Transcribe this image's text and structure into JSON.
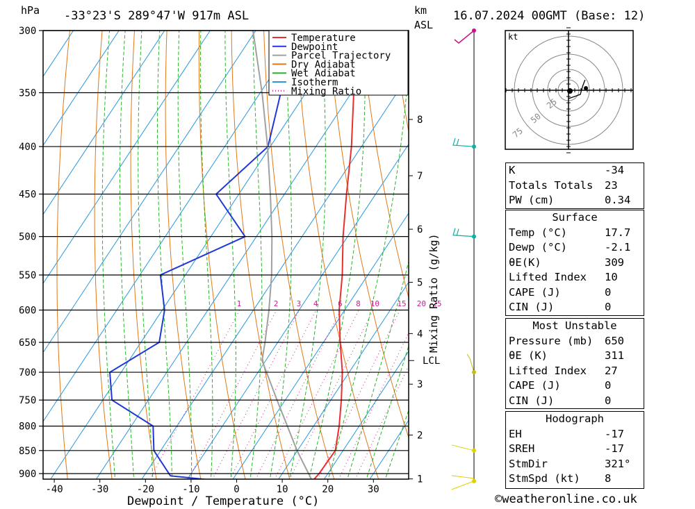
{
  "header": {
    "location": "-33°23'S 289°47'W 917m ASL",
    "datetime": "16.07.2024 00GMT (Base: 12)",
    "left_unit": "hPa",
    "right_unit_1": "km",
    "right_unit_2": "ASL"
  },
  "chart_data": {
    "type": "skew-t",
    "xlabel": "Dewpoint / Temperature (°C)",
    "ylabel_left": "hPa",
    "ylabel_right": "Mixing Ratio (g/kg)",
    "pressure_levels": [
      300,
      350,
      400,
      450,
      500,
      550,
      600,
      650,
      700,
      750,
      800,
      850,
      900
    ],
    "x_ticks": [
      -40,
      -30,
      -20,
      -10,
      0,
      10,
      20,
      30
    ],
    "km_ticks": [
      {
        "km": 8,
        "p": 374
      },
      {
        "km": 7,
        "p": 430
      },
      {
        "km": 6,
        "p": 491
      },
      {
        "km": 5,
        "p": 560
      },
      {
        "km": 4,
        "p": 636
      },
      {
        "km": 3,
        "p": 721
      },
      {
        "km": 2,
        "p": 818
      },
      {
        "km": 1,
        "p": 912
      }
    ],
    "lcl": {
      "label": "LCL",
      "p": 680
    },
    "mixing_ratio_labels": [
      "1",
      "2",
      "3",
      "4",
      "6",
      "8",
      "10",
      "15",
      "20",
      "25"
    ],
    "legend": [
      {
        "label": "Temperature",
        "color": "#e8302f",
        "style": "solid"
      },
      {
        "label": "Dewpoint",
        "color": "#2038d8",
        "style": "solid"
      },
      {
        "label": "Parcel Trajectory",
        "color": "#a0a0a0",
        "style": "solid"
      },
      {
        "label": "Dry Adiabat",
        "color": "#e07818",
        "style": "solid"
      },
      {
        "label": "Wet Adiabat",
        "color": "#28b428",
        "style": "solid"
      },
      {
        "label": "Isotherm",
        "color": "#2898e0",
        "style": "solid"
      },
      {
        "label": "Mixing Ratio",
        "color": "#c81e8c",
        "style": "dotted"
      }
    ],
    "series": [
      {
        "name": "Temperature",
        "points": [
          [
            917,
            17.7
          ],
          [
            900,
            18.1
          ],
          [
            850,
            18.3
          ],
          [
            800,
            15.6
          ],
          [
            750,
            12.3
          ],
          [
            700,
            8.5
          ],
          [
            650,
            3.7
          ],
          [
            600,
            -1.2
          ],
          [
            550,
            -5.6
          ],
          [
            500,
            -11.0
          ],
          [
            450,
            -16.4
          ],
          [
            400,
            -22.2
          ],
          [
            350,
            -29.5
          ],
          [
            300,
            -38.4
          ]
        ]
      },
      {
        "name": "Dewpoint",
        "points": [
          [
            917,
            -2.1
          ],
          [
            905,
            -14.2
          ],
          [
            850,
            -21.5
          ],
          [
            800,
            -25.2
          ],
          [
            750,
            -38.0
          ],
          [
            700,
            -42.5
          ],
          [
            650,
            -36.0
          ],
          [
            600,
            -39.5
          ],
          [
            550,
            -45.5
          ],
          [
            500,
            -32.5
          ],
          [
            450,
            -45.0
          ],
          [
            400,
            -40.5
          ],
          [
            350,
            -45.5
          ],
          [
            300,
            -52.0
          ]
        ]
      },
      {
        "name": "Parcel Trajectory",
        "points": [
          [
            917,
            17.7
          ],
          [
            850,
            9.9
          ],
          [
            750,
            -1.8
          ],
          [
            680,
            -10.8
          ],
          [
            650,
            -12.8
          ],
          [
            600,
            -16.6
          ],
          [
            550,
            -21.1
          ],
          [
            500,
            -26.6
          ],
          [
            450,
            -33.1
          ],
          [
            400,
            -40.6
          ],
          [
            350,
            -49.6
          ],
          [
            300,
            -60.6
          ]
        ]
      }
    ],
    "wind_barbs": [
      {
        "p": 300,
        "color": "#cc1088"
      },
      {
        "p": 400,
        "color": "#10b0a0"
      },
      {
        "p": 500,
        "color": "#10b0a0"
      },
      {
        "p": 700,
        "color": "#c0c010"
      },
      {
        "p": 850,
        "color": "#e0d000"
      },
      {
        "p": 917,
        "color": "#e0d000"
      }
    ],
    "hodograph": {
      "unit": "kt",
      "ring_labels": [
        "25",
        "50",
        "75"
      ],
      "trace": [
        [
          0,
          0
        ],
        [
          5,
          2
        ],
        [
          6,
          6
        ],
        [
          7,
          9
        ]
      ]
    }
  },
  "indices": {
    "rows": [
      {
        "label": "K",
        "value": "-34"
      },
      {
        "label": "Totals Totals",
        "value": "23"
      },
      {
        "label": "PW (cm)",
        "value": "0.34"
      }
    ]
  },
  "surface": {
    "title": "Surface",
    "rows": [
      {
        "label": "Temp (°C)",
        "value": "17.7"
      },
      {
        "label": "Dewp (°C)",
        "value": "-2.1"
      },
      {
        "label": "θE(K)",
        "value": "309"
      },
      {
        "label": "Lifted Index",
        "value": "10"
      },
      {
        "label": "CAPE (J)",
        "value": "0"
      },
      {
        "label": "CIN (J)",
        "value": "0"
      }
    ]
  },
  "most_unstable": {
    "title": "Most Unstable",
    "rows": [
      {
        "label": "Pressure (mb)",
        "value": "650"
      },
      {
        "label": "θE (K)",
        "value": "311"
      },
      {
        "label": "Lifted Index",
        "value": "27"
      },
      {
        "label": "CAPE (J)",
        "value": "0"
      },
      {
        "label": "CIN (J)",
        "value": "0"
      }
    ]
  },
  "hodograph_table": {
    "title": "Hodograph",
    "rows": [
      {
        "label": "EH",
        "value": "-17"
      },
      {
        "label": "SREH",
        "value": "-17"
      },
      {
        "label": "StmDir",
        "value": "321°"
      },
      {
        "label": "StmSpd (kt)",
        "value": "8"
      }
    ]
  },
  "footer": {
    "text": "©weatheronline.co.uk"
  }
}
